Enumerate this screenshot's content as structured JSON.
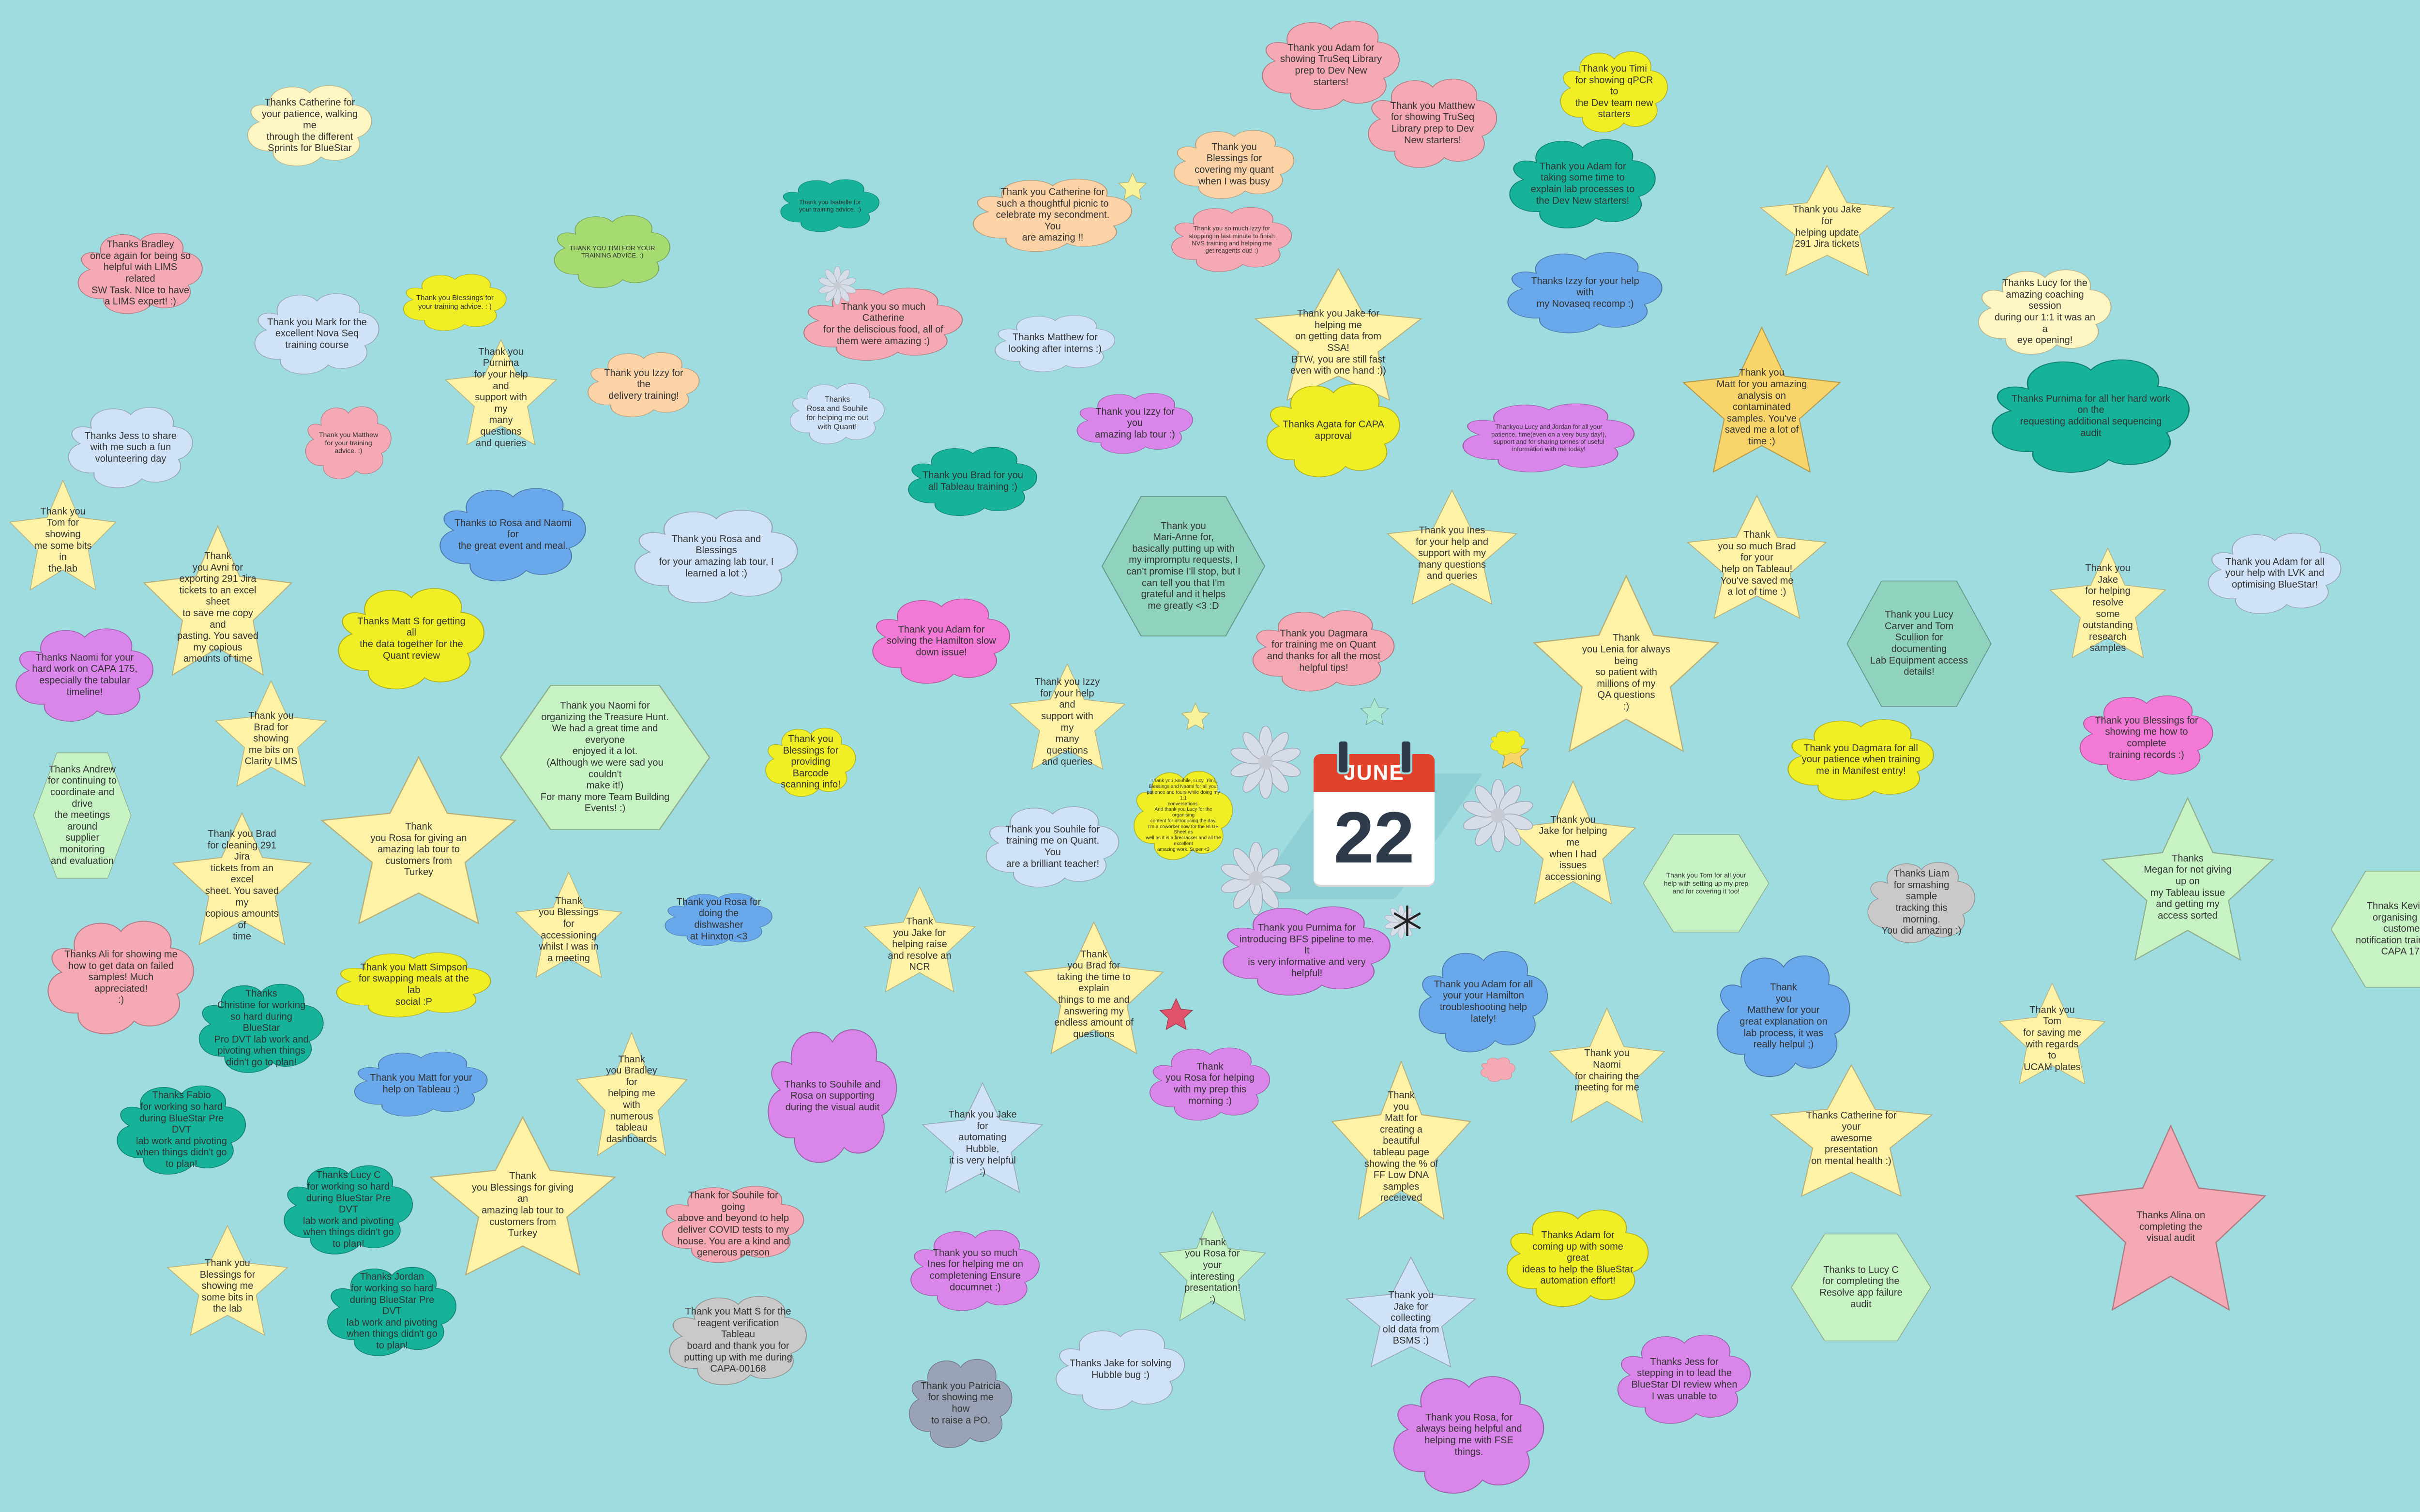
{
  "board": {
    "background": "#9fdce0",
    "calendar": {
      "month": "JUNE",
      "day": "22",
      "header_color": "#e0422b"
    }
  },
  "notes": [
    {
      "text": "Thanks Catherine for\nyour patience, walking me\nthrough the different\nSprints for BlueStar",
      "shape": "cloud",
      "color": "#fdf6c3"
    },
    {
      "text": "Thanks Bradley\nonce again for being so\nhelpful with LIMS related\nSW Task. NIce to have\na LIMS expert! :)",
      "shape": "cloud",
      "color": "#f4a9b4"
    },
    {
      "text": "Thank you Blessings for\nyour training advice. : )",
      "shape": "cloud",
      "color": "#f0ee24"
    },
    {
      "text": "THANK YOU TIMI FOR YOUR\nTRAINING ADVICE. :)",
      "shape": "cloud",
      "color": "#a6db72"
    },
    {
      "text": "Thank you Mark for the\nexcellent Nova Seq\ntraining course",
      "shape": "cloud",
      "color": "#cfe2f7"
    },
    {
      "text": "Thank you Purnima\nfor your help and\nsupport with my\nmany questions\nand queries",
      "shape": "star",
      "color": "#fdf2a6"
    },
    {
      "text": "Thank you Izzy for the\ndelivery training!",
      "shape": "cloud",
      "color": "#fbd3a6"
    },
    {
      "text": "Thanks Jess to share\nwith me such a fun\nvolunteering day",
      "shape": "cloud",
      "color": "#cfe2f7"
    },
    {
      "text": "Thank you Matthew\nfor your training\nadvice. :)",
      "shape": "cloud",
      "color": "#f4a9b4"
    },
    {
      "text": "Thank you\nTom for showing\nme some bits in\nthe lab",
      "shape": "star",
      "color": "#fdf2a6"
    },
    {
      "text": "Thank\nyou Avni for\nexporting 291 Jira\ntickets to an excel sheet\nto save me copy and\npasting. You saved\nmy copious\namounts of time",
      "shape": "star",
      "color": "#fdf2a6"
    },
    {
      "text": "Thanks to Rosa and Naomi for\nthe great event and meal.",
      "shape": "cloud",
      "color": "#6aa8ec"
    },
    {
      "text": "Thank you Rosa and Blessings\nfor your amazing lab tour, I\nlearned a lot :)",
      "shape": "cloud",
      "color": "#cfe2f7"
    },
    {
      "text": "Thanks Naomi for your\nhard work on CAPA 175,\nespecially the tabular\ntimeline!",
      "shape": "cloud",
      "color": "#d985ea"
    },
    {
      "text": "Thanks Matt S for getting all\nthe data together for the\nQuant review",
      "shape": "cloud",
      "color": "#f0ee24"
    },
    {
      "text": "Thank you\nBrad for showing\nme bits on\nClarity LIMS",
      "shape": "star",
      "color": "#fdf2a6"
    },
    {
      "text": "Thank you Naomi for\norganizing the Treasure Hunt.\nWe had a great time and everyone\nenjoyed it a lot.\n(Although we were sad you couldn't\nmake it!)\nFor many more Team Building\nEvents! :)",
      "shape": "hex",
      "color": "#c7f2c4"
    },
    {
      "text": "Thanks Andrew\nfor continuing to\ncoordinate and drive\nthe meetings around\nsupplier monitoring\nand evaluation",
      "shape": "hex",
      "color": "#c7f2c4"
    },
    {
      "text": "Thank\nyou Rosa for giving an\namazing lab tour to\ncustomers from\nTurkey",
      "shape": "star",
      "color": "#fdf2a6"
    },
    {
      "text": "Thank you Brad\nfor cleaning 291 Jira\ntickets from an excel\nsheet. You saved my\ncopious amounts of\ntime",
      "shape": "star",
      "color": "#fdf2a6"
    },
    {
      "text": "Thank\nyou Blessings for\naccessioning\nwhilst I was in\na meeting",
      "shape": "star",
      "color": "#fdf2a6"
    },
    {
      "text": "Thanks Ali for showing me\nhow to get data on failed\nsamples! Much appreciated!\n:)",
      "shape": "cloud",
      "color": "#f4a9b4"
    },
    {
      "text": "Thank you Matt Simpson\nfor swapping meals at the lab\nsocial :P",
      "shape": "cloud",
      "color": "#f0ee24"
    },
    {
      "text": "Thanks\nChristine for working\nso hard during BlueStar\nPro DVT lab work and\npivoting when things\ndidn't go to plan!",
      "shape": "cloud",
      "color": "#16b39a"
    },
    {
      "text": "Thank you Matt for your\nhelp on Tableau :)",
      "shape": "cloud",
      "color": "#6aa8ec"
    },
    {
      "text": "Thank\nyou Bradley for\nhelping me with\nnumerous\ntableau\ndashboards",
      "shape": "star",
      "color": "#fdf2a6"
    },
    {
      "text": "Thanks Fabio\nfor working so hard\nduring BlueStar Pre DVT\nlab work and pivoting\nwhen things didn't go\nto plan!",
      "shape": "cloud",
      "color": "#16b39a"
    },
    {
      "text": "Thanks Lucy C\nfor working so hard\nduring BlueStar Pre DVT\nlab work and pivoting\nwhen things didn't go\nto plan!",
      "shape": "cloud",
      "color": "#16b39a"
    },
    {
      "text": "Thank\nyou Blessings for giving an\namazing lab tour to\ncustomers from\nTurkey",
      "shape": "star",
      "color": "#fdf2a6"
    },
    {
      "text": "Thanks Jordan\nfor working so hard\nduring BlueStar Pre DVT\nlab work and pivoting\nwhen things didn't go\nto plan!",
      "shape": "cloud",
      "color": "#16b39a"
    },
    {
      "text": "Thank you\nBlessings for\nshowing me\nsome bits in\nthe lab",
      "shape": "star",
      "color": "#fdf2a6"
    },
    {
      "text": "Thank you Isabelle for\nyour training advice. :)",
      "shape": "cloud",
      "color": "#16b39a"
    },
    {
      "text": "Thank you Catherine for\nsuch a thoughtful picnic to\ncelebrate my secondment. You\nare amazing !!",
      "shape": "cloud",
      "color": "#fbd3a6"
    },
    {
      "text": "Thank you so much Catherine\nfor the deliscious food, all of\nthem were amazing :)",
      "shape": "cloud",
      "color": "#f4a9b4"
    },
    {
      "text": "Thanks Matthew for\nlooking after interns :)",
      "shape": "cloud",
      "color": "#cfe2f7"
    },
    {
      "text": "Thanks\nRosa and Souhile\nfor helping me out\nwith Quant!",
      "shape": "cloud",
      "color": "#cfe2f7"
    },
    {
      "text": "Thank you Brad for you\nall Tableau training :)",
      "shape": "cloud",
      "color": "#16b39a"
    },
    {
      "text": "Thank you Izzy for you\namazing lab tour :)",
      "shape": "cloud",
      "color": "#d985ea"
    },
    {
      "text": "Thank you Adam for\nsolving the Hamilton slow\ndown issue!",
      "shape": "cloud",
      "color": "#f27ad6"
    },
    {
      "text": "Thank you\nMari-Anne for,\nbasically putting up with\nmy impromptu requests, I\ncan't promise I'll stop, but I\ncan tell you that I'm\ngrateful and it helps\nme greatly <3 :D",
      "shape": "hex",
      "color": "#8fd3bf"
    },
    {
      "text": "Thank you\nBlessings for\nproviding Barcode\nscanning info!",
      "shape": "cloud",
      "color": "#f0ee24"
    },
    {
      "text": "Thank you Izzy\nfor your help and\nsupport with my\nmany questions\nand queries",
      "shape": "star",
      "color": "#fdf2a6"
    },
    {
      "text": "Thank you Souhile for\ntraining me on Quant. You\nare a brilliant teacher!",
      "shape": "cloud",
      "color": "#cfe2f7"
    },
    {
      "text": "Thank you Rosa for\ndoing the dishwasher\nat Hinxton <3",
      "shape": "cloud",
      "color": "#6aa8ec"
    },
    {
      "text": "Thank\nyou Jake for\nhelping raise\nand resolve an\nNCR",
      "shape": "star",
      "color": "#fdf2a6"
    },
    {
      "text": "Thank\nyou Brad for\ntaking the time to explain\nthings to me and\nanswering my\nendless amount of\nquestions",
      "shape": "star",
      "color": "#fdf2a6"
    },
    {
      "text": "Thanks to Souhile and\nRosa on supporting\nduring the visual audit",
      "shape": "cloud",
      "color": "#d985ea"
    },
    {
      "text": "Thank you Jake for\nautomating Hubble,\nit is very helpful :)",
      "shape": "star",
      "color": "#cfe2f7"
    },
    {
      "text": "Thank for Souhile for going\nabove and beyond to help\ndeliver COVID tests to my\nhouse. You are a kind and\ngenerous person",
      "shape": "cloud",
      "color": "#f4a9b4"
    },
    {
      "text": "Thank you Matt S for the\nreagent verification Tableau\nboard and thank you for\nputting up with me during\nCAPA-00168",
      "shape": "cloud",
      "color": "#c9c9c9"
    },
    {
      "text": "Thank you so much\nInes for helping me on\ncompletening Ensure\ndocumnet :)",
      "shape": "cloud",
      "color": "#d985ea"
    },
    {
      "text": "Thank you Patricia\nfor showing me how\nto raise a PO.",
      "shape": "cloud",
      "color": "#9aa3b5"
    },
    {
      "text": "Thanks Jake for solving\nHubble bug :)",
      "shape": "cloud",
      "color": "#cfe2f7"
    },
    {
      "text": "Thank you Adam for\nshowing TruSeq Library\nprep to Dev New\nstarters!",
      "shape": "cloud",
      "color": "#f4a9b4"
    },
    {
      "text": "Thank you Matthew\nfor showing TruSeq\nLibrary prep to Dev\nNew starters!",
      "shape": "cloud",
      "color": "#f4a9b4"
    },
    {
      "text": "Thank you\nBlessings for\ncovering my quant\nwhen I was busy",
      "shape": "cloud",
      "color": "#fbd3a6"
    },
    {
      "text": "Thank you so much Izzy for\nstopping in last minute to finish\nNVS training and helping me\nget reagents out! :)",
      "shape": "cloud",
      "color": "#f4a9b4"
    },
    {
      "text": "Thank you Jake for helping me\non getting data from SSA!\nBTW, you are still fast\neven with one hand :))",
      "shape": "star",
      "color": "#fdf2a6"
    },
    {
      "text": "Thanks Agata for CAPA\napproval",
      "shape": "cloud",
      "color": "#f0ee24"
    },
    {
      "text": "Thank you Timi\nfor showing qPCR to\nthe Dev team new\nstarters",
      "shape": "cloud",
      "color": "#f0ee24"
    },
    {
      "text": "Thank you Adam for\ntaking some time to\nexplain lab processes to\nthe Dev New starters!",
      "shape": "cloud",
      "color": "#16b39a"
    },
    {
      "text": "Thanks Izzy for your help with\nmy Novaseq recomp :)",
      "shape": "cloud",
      "color": "#6aa8ec"
    },
    {
      "text": "Thankyou Lucy and Jordan for all your\npatience, time(even on a very busy day!),\nsupport and for sharing tonnes of useful\ninformation with me today!",
      "shape": "cloud",
      "color": "#d985ea"
    },
    {
      "text": "Thank you Ines\nfor your help and\nsupport with my\nmany questions\nand queries",
      "shape": "star",
      "color": "#fdf2a6"
    },
    {
      "text": "Thank you Dagmara\nfor training me on Quant\nand thanks for all the most\nhelpful tips!",
      "shape": "cloud",
      "color": "#f4a9b4"
    },
    {
      "text": "Thank\nyou Lenia for always being\nso patient with\nmillions of my\nQA questions\n:)",
      "shape": "star",
      "color": "#fdf2a6"
    },
    {
      "text": "Thank you Jake for\nhelping update\n291 Jira tickets",
      "shape": "star",
      "color": "#fdf2a6"
    },
    {
      "text": "Thank you\nMatt for you amazing\nanalysis on contaminated\nsamples. You've\nsaved me a lot of\ntime :)",
      "shape": "star",
      "color": "#f8d56a"
    },
    {
      "text": "Thank\nyou so much Brad for your\nhelp on Tableau!\nYou've saved me\na lot of time :)",
      "shape": "star",
      "color": "#fdf2a6"
    },
    {
      "text": "Thank you Lucy\nCarver and Tom\nScullion for documenting\nLab Equipment access\ndetails!",
      "shape": "hex",
      "color": "#8fd3bf"
    },
    {
      "text": "Thanks Lucy for the\namazing coaching session\nduring our 1:1 it was an a\neye opening!",
      "shape": "cloud",
      "color": "#fdf6c3"
    },
    {
      "text": "Thanks Purnima for all her hard work on the\nrequesting additional sequencing audit",
      "shape": "cloud",
      "color": "#16b39a"
    },
    {
      "text": "Thank you Jake\nfor helping resolve\nsome outstanding\nresearch\nsamples",
      "shape": "star",
      "color": "#fdf2a6"
    },
    {
      "text": "Thank you Adam for all\nyour help with LVK and\noptimising BlueStar!",
      "shape": "cloud",
      "color": "#cfe2f7"
    },
    {
      "text": "Thank you Blessings for\nshowing me how to complete\ntraining records :)",
      "shape": "cloud",
      "color": "#f27ad6"
    },
    {
      "text": "Thank you Dagmara for all\nyour patience when training\nme in Manifest entry!",
      "shape": "cloud",
      "color": "#f0ee24"
    },
    {
      "text": "Thank you\nJake for helping me\nwhen I had\nissues\naccessioning",
      "shape": "star",
      "color": "#fdf2a6"
    },
    {
      "text": "Thank you Tom for all your\nhelp with setting up my prep\nand for covering it too!",
      "shape": "hex",
      "color": "#c7f2c4"
    },
    {
      "text": "Thanks Liam\nfor smashing sample\ntracking this morning.\nYou did amazing :)",
      "shape": "cloud",
      "color": "#c9c9c9"
    },
    {
      "text": "Thanks\nMegan for not giving up on\nmy Tableau issue\nand getting my\naccess sorted",
      "shape": "star",
      "color": "#c7f2c4"
    },
    {
      "text": "Thnaks Kevin for\norganising the customer\nnotification training for\nCAPA 175",
      "shape": "hex",
      "color": "#c7f2c4"
    },
    {
      "text": "Thank you Purnima for\nintroducing BFS pipeline to me. It\nis very informative and very\nhelpful!",
      "shape": "cloud",
      "color": "#d985ea"
    },
    {
      "text": "Thank you Adam for all\nyour your Hamilton\ntroubleshooting help\nlately!",
      "shape": "cloud",
      "color": "#6aa8ec"
    },
    {
      "text": "Thank\nyou\nMatthew for your\ngreat explanation on\nlab process, it was\nreally helpul ;)",
      "shape": "cloud",
      "color": "#6aa8ec"
    },
    {
      "text": "Thank you Naomi\nfor chairing the\nmeeting for me",
      "shape": "star",
      "color": "#fdf2a6"
    },
    {
      "text": "Thank you Tom\nfor saving me\nwith regards to\nUCAM plates",
      "shape": "star",
      "color": "#fdf2a6"
    },
    {
      "text": "Thank\nyou Rosa for helping\nwith my prep this\nmorning :)",
      "shape": "cloud",
      "color": "#d985ea"
    },
    {
      "text": "Thank\nyou\nMatt for\ncreating a beautiful\ntableau page\nshowing the % of\nFF Low DNA\nsamples\nreceieved",
      "shape": "star",
      "color": "#fdf2a6"
    },
    {
      "text": "Thanks Catherine for your\nawesome presentation\non mental health :)",
      "shape": "star",
      "color": "#fdf2a6"
    },
    {
      "text": "Thanks Alina on\ncompleting the\nvisual audit",
      "shape": "star",
      "color": "#f4a9b4"
    },
    {
      "text": "Thank\nyou Rosa for your\ninteresting\npresentation!\n:)",
      "shape": "star",
      "color": "#c7f2c4"
    },
    {
      "text": "Thank you\nJake for collecting\nold data from\nBSMS :)",
      "shape": "star",
      "color": "#cfe2f7"
    },
    {
      "text": "Thanks Adam for\ncoming up with some great\nideas to help the BlueStar\nautomation effort!",
      "shape": "cloud",
      "color": "#f0ee24"
    },
    {
      "text": "Thanks to Lucy C\nfor completing the\nResolve app failure\naudit",
      "shape": "hex",
      "color": "#c7f2c4"
    },
    {
      "text": "Thanks Jess for\nstepping in to lead the\nBlueStar DI review when\nI was unable to",
      "shape": "cloud",
      "color": "#d985ea"
    },
    {
      "text": "Thank you Rosa, for\nalways being helpful and\nhelping me with FSE\nthings.",
      "shape": "cloud",
      "color": "#d985ea"
    },
    {
      "text": "Thank you Souhile, Lucy, Timi,\nBlessings and Naomi for all your\npatience and tours while doing my 1:1\nconversations.\nAnd thank you Lucy for the organising\ncontent for introducing the day.\nI'm a coworker now for the BLUE Sheet as\nwell as it is a firecracker and all the\nexcellent\namazing work. Super <3",
      "shape": "cloud",
      "color": "#f0ee24"
    }
  ]
}
